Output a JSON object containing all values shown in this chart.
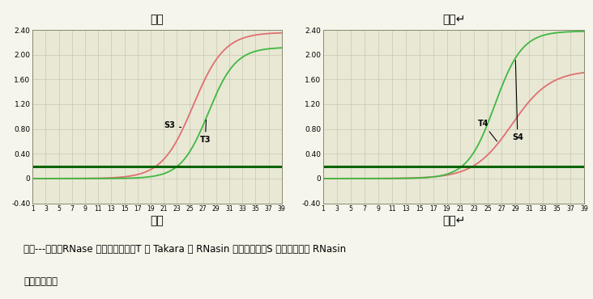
{
  "chart3": {
    "title": "图三",
    "S3_color": "#e07070",
    "T3_color": "#40b840",
    "flat_color": "#006400",
    "S3_label": "S3",
    "T3_label": "T3",
    "S3_midpoint": 25.5,
    "S3_steepness": 0.42,
    "S3_max": 2.36,
    "S3_baseline": 0.0,
    "T3_midpoint": 27.8,
    "T3_steepness": 0.48,
    "T3_max": 2.12,
    "T3_baseline": 0.0,
    "flat_value": 0.2
  },
  "chart4": {
    "title": "图四",
    "T4_color": "#e07070",
    "S4_color": "#40b840",
    "flat_color": "#006400",
    "T4_label": "T4",
    "S4_label": "S4",
    "T4_midpoint": 28.5,
    "T4_steepness": 0.36,
    "T4_max": 1.75,
    "T4_baseline": 0.0,
    "S4_midpoint": 26.0,
    "S4_steepness": 0.5,
    "S4_max": 2.38,
    "S4_baseline": 0.0,
    "flat_value": 0.2
  },
  "xlim": [
    1,
    39
  ],
  "ylim": [
    -0.4,
    2.4
  ],
  "yticks": [
    -0.4,
    0.0,
    0.4,
    0.8,
    1.2,
    1.6,
    2.0,
    2.4
  ],
  "ytick_labels": [
    "-0.40",
    "0",
    "0.40",
    "0.80",
    "1.20",
    "1.60",
    "2.00",
    "2.40"
  ],
  "xticks": [
    1,
    3,
    5,
    7,
    9,
    11,
    13,
    15,
    17,
    19,
    21,
    23,
    25,
    27,
    29,
    31,
    33,
    35,
    37,
    39
  ],
  "fig_bg": "#f5f5eb",
  "plot_bg": "#e8e8d5",
  "grid_color": "#c8c8b0",
  "bottom_text_line1": "图三---图六：RNase 量相同的时候，T 为 Takara 的 RNasin 的抑制效果，S 为新景生物的 RNasin",
  "bottom_text_line2": "的抑制效果。",
  "fig3_title": "图三",
  "fig4_title": "图四↵",
  "fig5_label": "图五",
  "fig6_label": "图六↵"
}
